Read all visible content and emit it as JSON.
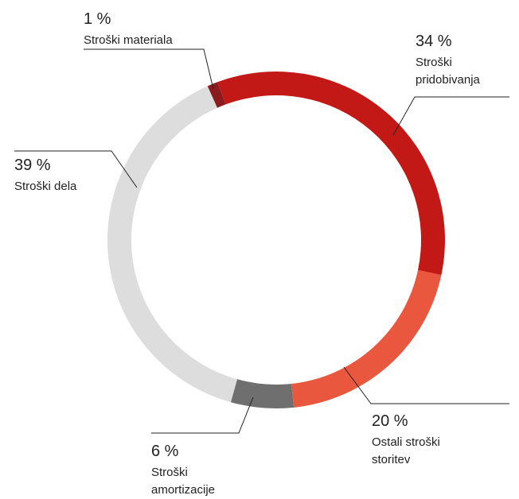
{
  "chart_data": {
    "type": "donut",
    "categories": [
      "Stroški materiala",
      "Stroški pridobivanja",
      "Ostali stroški storitev",
      "Stroški amortizacije",
      "Stroški dela"
    ],
    "values": [
      1,
      34,
      20,
      6,
      39
    ],
    "value_labels": [
      "1 %",
      "34 %",
      "20 %",
      "6 %",
      "39 %"
    ],
    "colors": [
      "#8c1b1f",
      "#c31916",
      "#e9583e",
      "#6f6f6f",
      "#dcdddc"
    ]
  }
}
